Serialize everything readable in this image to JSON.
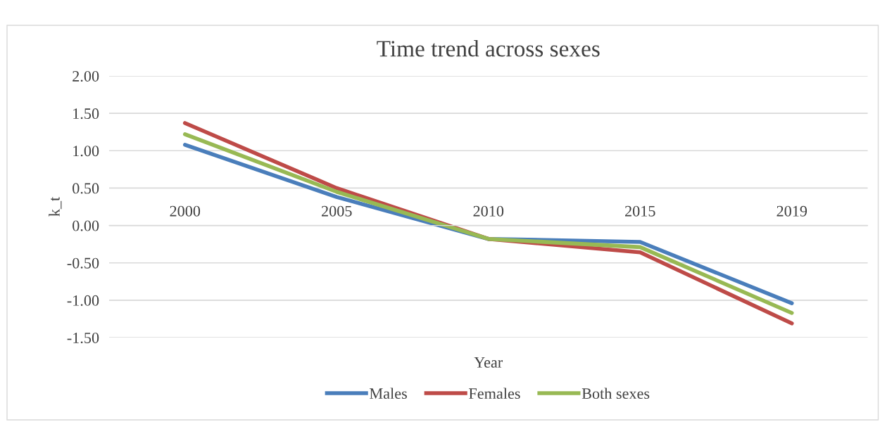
{
  "chart_data": {
    "type": "line",
    "title": "Time trend across sexes",
    "xlabel": "Year",
    "ylabel": "k_t",
    "categories": [
      "2000",
      "2005",
      "2010",
      "2015",
      "2019"
    ],
    "series": [
      {
        "name": "Males",
        "color": "#4a7ebb",
        "values": [
          1.08,
          0.38,
          -0.18,
          -0.22,
          -1.04
        ]
      },
      {
        "name": "Females",
        "color": "#be4b48",
        "values": [
          1.37,
          0.5,
          -0.18,
          -0.36,
          -1.31
        ]
      },
      {
        "name": "Both sexes",
        "color": "#98b954",
        "values": [
          1.22,
          0.45,
          -0.18,
          -0.29,
          -1.17
        ]
      }
    ],
    "ylim": [
      -1.5,
      2.0
    ],
    "yticks": [
      {
        "value": -1.5,
        "label": "-1.50"
      },
      {
        "value": -1.0,
        "label": "-1.00"
      },
      {
        "value": -0.5,
        "label": "-0.50"
      },
      {
        "value": 0,
        "label": "0.00"
      },
      {
        "value": 0.5,
        "label": "0.50"
      },
      {
        "value": 1.0,
        "label": "1.00"
      },
      {
        "value": 1.5,
        "label": "1.50"
      },
      {
        "value": 2.0,
        "label": "2.00"
      }
    ],
    "grid": "y",
    "legend": "bottom",
    "marker": "none",
    "line_style": "solid"
  }
}
